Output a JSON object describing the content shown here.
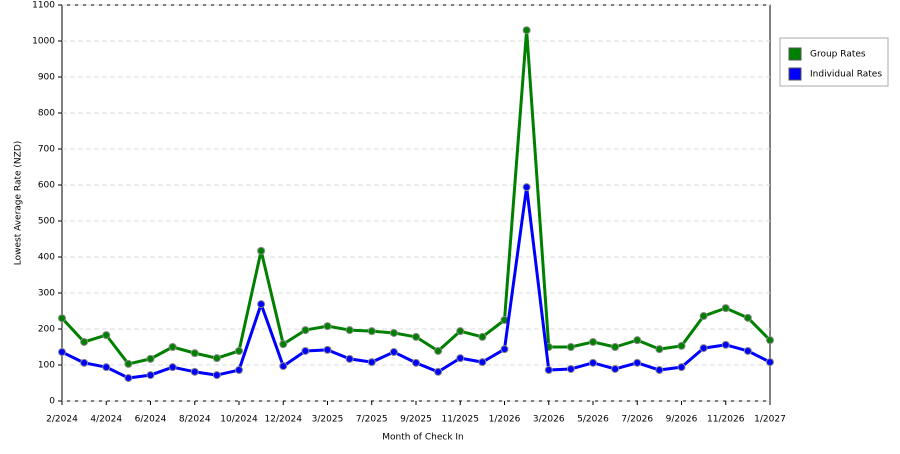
{
  "chart_data": {
    "type": "line",
    "x_label": "Month of Check In",
    "y_label": "Lowest Average Rate (NZD)",
    "categories": [
      "2/2024",
      null,
      "4/2024",
      null,
      "6/2024",
      null,
      "8/2024",
      null,
      "10/2024",
      null,
      "12/2024",
      null,
      "3/2025",
      null,
      "7/2025",
      null,
      "9/2025",
      null,
      "11/2025",
      null,
      "1/2026",
      null,
      "3/2026",
      null,
      "5/2026",
      null,
      "7/2026",
      null,
      "9/2026",
      null,
      "11/2026",
      null,
      "1/2027"
    ],
    "series": [
      {
        "name": "Group Rates",
        "color": "#008000",
        "values": [
          230,
          164,
          183,
          103,
          117,
          150,
          133,
          119,
          139,
          417,
          158,
          197,
          208,
          197,
          194,
          189,
          178,
          139,
          194,
          178,
          225,
          1030,
          150,
          150,
          164,
          150,
          169,
          144,
          153,
          236,
          258,
          231,
          169
        ]
      },
      {
        "name": "Individual Rates",
        "color": "#0000ff",
        "values": [
          136,
          106,
          94,
          64,
          72,
          94,
          81,
          72,
          86,
          269,
          97,
          139,
          142,
          117,
          108,
          136,
          106,
          81,
          119,
          108,
          144,
          594,
          86,
          89,
          106,
          89,
          106,
          86,
          94,
          147,
          156,
          139,
          108
        ]
      }
    ],
    "ylim": [
      0,
      1100
    ],
    "yticks": [
      0,
      100,
      200,
      300,
      400,
      500,
      600,
      700,
      800,
      900,
      1000,
      1100
    ],
    "grid": true,
    "legend": "right"
  }
}
